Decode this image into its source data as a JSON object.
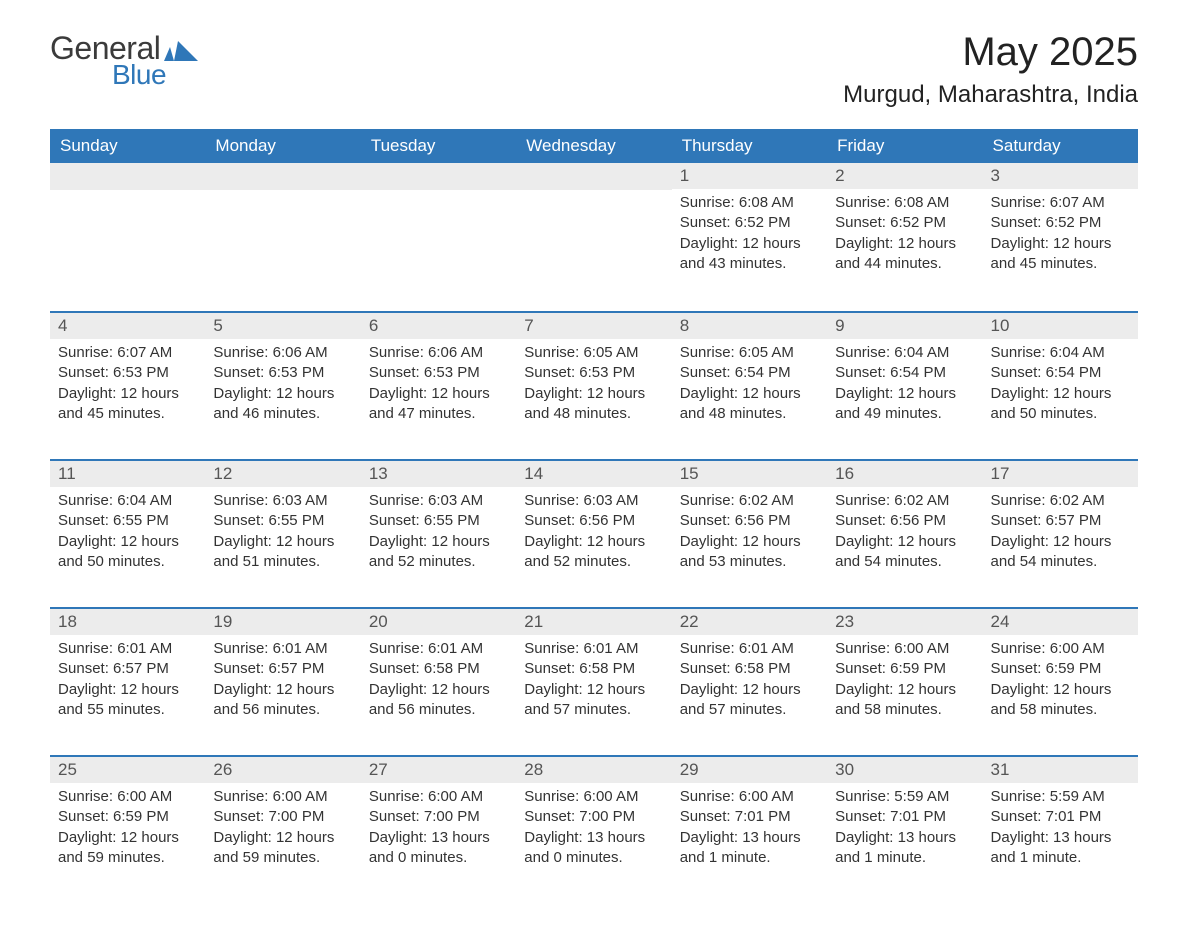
{
  "logo": {
    "text_general": "General",
    "text_blue": "Blue"
  },
  "title": "May 2025",
  "location": "Murgud, Maharashtra, India",
  "colors": {
    "header_blue": "#2f77b8",
    "row_border": "#2f77b8",
    "daynum_bg": "#ececec",
    "text": "#333333",
    "white": "#ffffff"
  },
  "day_names": [
    "Sunday",
    "Monday",
    "Tuesday",
    "Wednesday",
    "Thursday",
    "Friday",
    "Saturday"
  ],
  "weeks": [
    [
      {
        "empty": true
      },
      {
        "empty": true
      },
      {
        "empty": true
      },
      {
        "empty": true
      },
      {
        "day": "1",
        "sunrise": "Sunrise: 6:08 AM",
        "sunset": "Sunset: 6:52 PM",
        "daylight": "Daylight: 12 hours and 43 minutes."
      },
      {
        "day": "2",
        "sunrise": "Sunrise: 6:08 AM",
        "sunset": "Sunset: 6:52 PM",
        "daylight": "Daylight: 12 hours and 44 minutes."
      },
      {
        "day": "3",
        "sunrise": "Sunrise: 6:07 AM",
        "sunset": "Sunset: 6:52 PM",
        "daylight": "Daylight: 12 hours and 45 minutes."
      }
    ],
    [
      {
        "day": "4",
        "sunrise": "Sunrise: 6:07 AM",
        "sunset": "Sunset: 6:53 PM",
        "daylight": "Daylight: 12 hours and 45 minutes."
      },
      {
        "day": "5",
        "sunrise": "Sunrise: 6:06 AM",
        "sunset": "Sunset: 6:53 PM",
        "daylight": "Daylight: 12 hours and 46 minutes."
      },
      {
        "day": "6",
        "sunrise": "Sunrise: 6:06 AM",
        "sunset": "Sunset: 6:53 PM",
        "daylight": "Daylight: 12 hours and 47 minutes."
      },
      {
        "day": "7",
        "sunrise": "Sunrise: 6:05 AM",
        "sunset": "Sunset: 6:53 PM",
        "daylight": "Daylight: 12 hours and 48 minutes."
      },
      {
        "day": "8",
        "sunrise": "Sunrise: 6:05 AM",
        "sunset": "Sunset: 6:54 PM",
        "daylight": "Daylight: 12 hours and 48 minutes."
      },
      {
        "day": "9",
        "sunrise": "Sunrise: 6:04 AM",
        "sunset": "Sunset: 6:54 PM",
        "daylight": "Daylight: 12 hours and 49 minutes."
      },
      {
        "day": "10",
        "sunrise": "Sunrise: 6:04 AM",
        "sunset": "Sunset: 6:54 PM",
        "daylight": "Daylight: 12 hours and 50 minutes."
      }
    ],
    [
      {
        "day": "11",
        "sunrise": "Sunrise: 6:04 AM",
        "sunset": "Sunset: 6:55 PM",
        "daylight": "Daylight: 12 hours and 50 minutes."
      },
      {
        "day": "12",
        "sunrise": "Sunrise: 6:03 AM",
        "sunset": "Sunset: 6:55 PM",
        "daylight": "Daylight: 12 hours and 51 minutes."
      },
      {
        "day": "13",
        "sunrise": "Sunrise: 6:03 AM",
        "sunset": "Sunset: 6:55 PM",
        "daylight": "Daylight: 12 hours and 52 minutes."
      },
      {
        "day": "14",
        "sunrise": "Sunrise: 6:03 AM",
        "sunset": "Sunset: 6:56 PM",
        "daylight": "Daylight: 12 hours and 52 minutes."
      },
      {
        "day": "15",
        "sunrise": "Sunrise: 6:02 AM",
        "sunset": "Sunset: 6:56 PM",
        "daylight": "Daylight: 12 hours and 53 minutes."
      },
      {
        "day": "16",
        "sunrise": "Sunrise: 6:02 AM",
        "sunset": "Sunset: 6:56 PM",
        "daylight": "Daylight: 12 hours and 54 minutes."
      },
      {
        "day": "17",
        "sunrise": "Sunrise: 6:02 AM",
        "sunset": "Sunset: 6:57 PM",
        "daylight": "Daylight: 12 hours and 54 minutes."
      }
    ],
    [
      {
        "day": "18",
        "sunrise": "Sunrise: 6:01 AM",
        "sunset": "Sunset: 6:57 PM",
        "daylight": "Daylight: 12 hours and 55 minutes."
      },
      {
        "day": "19",
        "sunrise": "Sunrise: 6:01 AM",
        "sunset": "Sunset: 6:57 PM",
        "daylight": "Daylight: 12 hours and 56 minutes."
      },
      {
        "day": "20",
        "sunrise": "Sunrise: 6:01 AM",
        "sunset": "Sunset: 6:58 PM",
        "daylight": "Daylight: 12 hours and 56 minutes."
      },
      {
        "day": "21",
        "sunrise": "Sunrise: 6:01 AM",
        "sunset": "Sunset: 6:58 PM",
        "daylight": "Daylight: 12 hours and 57 minutes."
      },
      {
        "day": "22",
        "sunrise": "Sunrise: 6:01 AM",
        "sunset": "Sunset: 6:58 PM",
        "daylight": "Daylight: 12 hours and 57 minutes."
      },
      {
        "day": "23",
        "sunrise": "Sunrise: 6:00 AM",
        "sunset": "Sunset: 6:59 PM",
        "daylight": "Daylight: 12 hours and 58 minutes."
      },
      {
        "day": "24",
        "sunrise": "Sunrise: 6:00 AM",
        "sunset": "Sunset: 6:59 PM",
        "daylight": "Daylight: 12 hours and 58 minutes."
      }
    ],
    [
      {
        "day": "25",
        "sunrise": "Sunrise: 6:00 AM",
        "sunset": "Sunset: 6:59 PM",
        "daylight": "Daylight: 12 hours and 59 minutes."
      },
      {
        "day": "26",
        "sunrise": "Sunrise: 6:00 AM",
        "sunset": "Sunset: 7:00 PM",
        "daylight": "Daylight: 12 hours and 59 minutes."
      },
      {
        "day": "27",
        "sunrise": "Sunrise: 6:00 AM",
        "sunset": "Sunset: 7:00 PM",
        "daylight": "Daylight: 13 hours and 0 minutes."
      },
      {
        "day": "28",
        "sunrise": "Sunrise: 6:00 AM",
        "sunset": "Sunset: 7:00 PM",
        "daylight": "Daylight: 13 hours and 0 minutes."
      },
      {
        "day": "29",
        "sunrise": "Sunrise: 6:00 AM",
        "sunset": "Sunset: 7:01 PM",
        "daylight": "Daylight: 13 hours and 1 minute."
      },
      {
        "day": "30",
        "sunrise": "Sunrise: 5:59 AM",
        "sunset": "Sunset: 7:01 PM",
        "daylight": "Daylight: 13 hours and 1 minute."
      },
      {
        "day": "31",
        "sunrise": "Sunrise: 5:59 AM",
        "sunset": "Sunset: 7:01 PM",
        "daylight": "Daylight: 13 hours and 1 minute."
      }
    ]
  ]
}
